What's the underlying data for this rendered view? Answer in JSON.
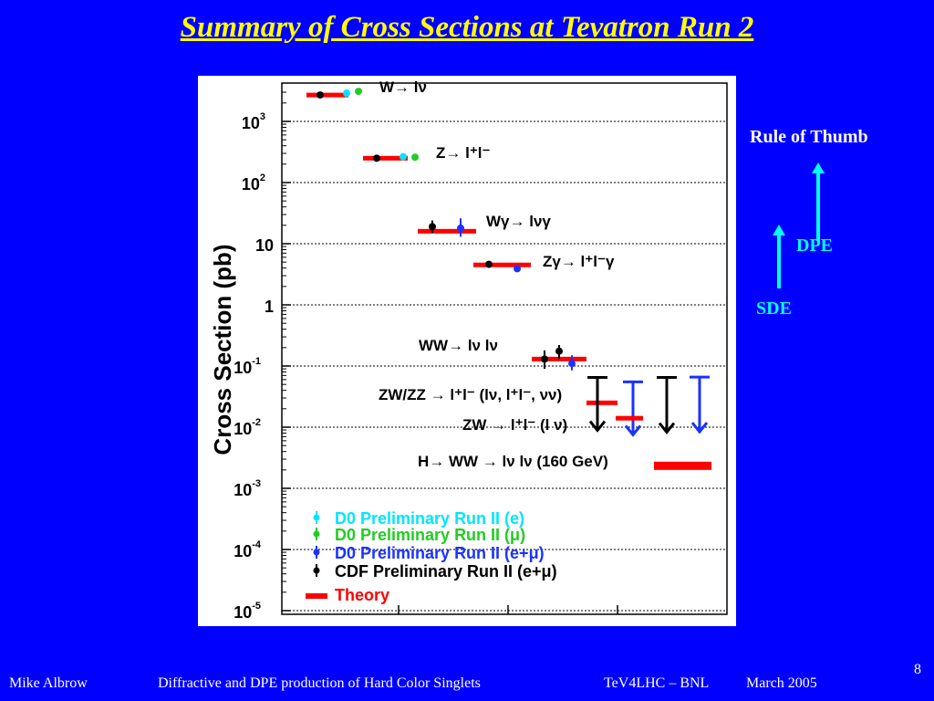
{
  "title": "Summary of Cross Sections at Tevatron Run 2",
  "side_notes": {
    "heading": "Rule of Thumb",
    "dpe": "DPE",
    "sde": "SDE"
  },
  "footer": {
    "author": "Mike Albrow",
    "talk": "Diffractive and DPE production of Hard Color Singlets",
    "venue": "TeV4LHC – BNL",
    "date": "March 2005",
    "page": "8"
  },
  "colors": {
    "background": "#0000ff",
    "title": "#ffff00",
    "accent": "#00ffff",
    "d0_e": "#00e5ff",
    "d0_mu": "#22cc22",
    "d0_emu": "#1a33ff",
    "cdf": "#000000",
    "theory": "#ff0000"
  },
  "chart_data": {
    "type": "scatter",
    "ylabel": "Cross Section   (pb)",
    "yscale": "log",
    "ylim": [
      1e-05,
      5000
    ],
    "yticks": [
      {
        "value": 1000,
        "base": "10",
        "exp": "3"
      },
      {
        "value": 100,
        "base": "10",
        "exp": "2"
      },
      {
        "value": 10,
        "base": "10",
        "exp": ""
      },
      {
        "value": 1,
        "base": "1",
        "exp": ""
      },
      {
        "value": 0.1,
        "base": "10",
        "exp": "-1"
      },
      {
        "value": 0.01,
        "base": "10",
        "exp": "-2"
      },
      {
        "value": 0.001,
        "base": "10",
        "exp": "-3"
      },
      {
        "value": 0.0001,
        "base": "10",
        "exp": "-4"
      },
      {
        "value": 1e-05,
        "base": "10",
        "exp": "-5"
      }
    ],
    "grid": true,
    "legend_position": "bottom-left",
    "legend": [
      {
        "label": "D0 Preliminary Run II (e)",
        "color": "#00e5ff",
        "marker": "point"
      },
      {
        "label": "D0 Preliminary Run II (μ)",
        "color": "#22cc22",
        "marker": "point"
      },
      {
        "label": "D0 Preliminary Run II (e+μ)",
        "color": "#1a33ff",
        "marker": "point"
      },
      {
        "label": "CDF Preliminary Run II (e+μ)",
        "color": "#000000",
        "marker": "point"
      },
      {
        "label": "Theory",
        "color": "#ff0000",
        "marker": "bar"
      }
    ],
    "processes": [
      {
        "label": "W→ lν",
        "theory": 2700,
        "points": [
          {
            "series": "cdf",
            "value": 2700
          },
          {
            "series": "d0_e",
            "value": 2900
          },
          {
            "series": "d0_mu",
            "value": 3100
          }
        ]
      },
      {
        "label": "Z→ l⁺l⁻",
        "theory": 250,
        "points": [
          {
            "series": "cdf",
            "value": 250
          },
          {
            "series": "d0_e",
            "value": 265
          },
          {
            "series": "d0_mu",
            "value": 260
          }
        ]
      },
      {
        "label": "Wγ→ lνγ",
        "theory": 16,
        "points": [
          {
            "series": "cdf",
            "value": 19,
            "err": [
              15,
              24
            ]
          },
          {
            "series": "d0_emu",
            "value": 18,
            "err": [
              13,
              26
            ]
          }
        ]
      },
      {
        "label": "Zγ→ l⁺l⁻γ",
        "theory": 4.5,
        "points": [
          {
            "series": "cdf",
            "value": 4.6
          },
          {
            "series": "d0_emu",
            "value": 3.9
          }
        ]
      },
      {
        "label": "WW→ lν lν",
        "theory": 0.13,
        "points": [
          {
            "series": "cdf",
            "value": 0.13,
            "err": [
              0.09,
              0.18
            ]
          },
          {
            "series": "cdf",
            "value": 0.175,
            "err": [
              0.13,
              0.22
            ]
          },
          {
            "series": "d0_emu",
            "value": 0.11,
            "err": [
              0.085,
              0.15
            ]
          }
        ]
      },
      {
        "label": "ZW/ZZ → l⁺l⁻ (lν, l⁺l⁻, νν)",
        "theory": 0.025,
        "limits": [
          {
            "series": "cdf",
            "value": 0.065
          },
          {
            "series": "d0_emu",
            "value": 0.055
          }
        ]
      },
      {
        "label": "ZW → l⁺l⁻ (l ν)",
        "theory": 0.014,
        "limits": [
          {
            "series": "cdf",
            "value": 0.065
          },
          {
            "series": "d0_emu",
            "value": 0.066
          }
        ]
      },
      {
        "label": "H→ WW → lν lν (160 GeV)",
        "theory": 0.0025
      }
    ]
  }
}
